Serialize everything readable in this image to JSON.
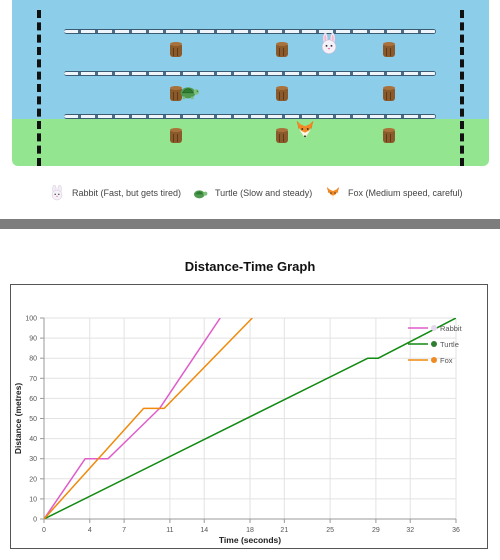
{
  "legend": {
    "rabbit": "Rabbit (Fast, but gets tired)",
    "turtle": "Turtle (Slow and steady)",
    "fox": "Fox (Medium speed, careful)"
  },
  "colors": {
    "water": "#8ccdea",
    "grass": "#93e58f",
    "rabbit": "#e05cc9",
    "turtle": "#118a11",
    "fox": "#ef8a0c"
  },
  "chart_data": {
    "type": "line",
    "title": "Distance-Time Graph",
    "xlabel": "Time (seconds)",
    "ylabel": "Distance (metres)",
    "xlim": [
      0,
      36
    ],
    "ylim": [
      0,
      100
    ],
    "xticks": [
      0,
      4,
      7,
      11,
      14,
      18,
      21,
      25,
      29,
      32,
      36
    ],
    "yticks": [
      0,
      10,
      20,
      30,
      40,
      50,
      60,
      70,
      80,
      90,
      100
    ],
    "grid": true,
    "legend_position": "top-right",
    "series": [
      {
        "name": "Rabbit",
        "color": "#e05cc9",
        "icon": "rabbit-icon",
        "x": [
          0,
          3.6,
          5.6,
          10.1,
          15.4
        ],
        "y": [
          0,
          30,
          30,
          55,
          100
        ]
      },
      {
        "name": "Turtle",
        "color": "#118a11",
        "icon": "turtle-icon",
        "x": [
          0,
          28.3,
          29.2,
          36
        ],
        "y": [
          0,
          80,
          80,
          100
        ]
      },
      {
        "name": "Fox",
        "color": "#ef8a0c",
        "icon": "fox-icon",
        "x": [
          0,
          8.7,
          10.5,
          18.2
        ],
        "y": [
          0,
          55,
          55,
          100
        ]
      }
    ]
  }
}
